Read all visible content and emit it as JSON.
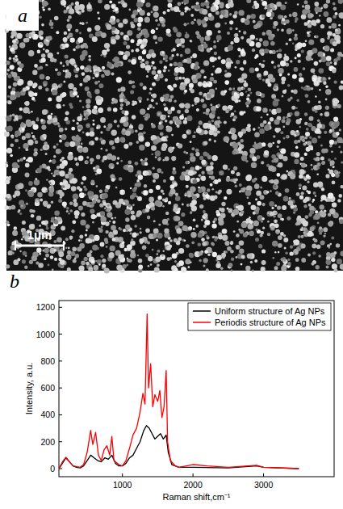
{
  "image_panel": {
    "letter": "a",
    "scale_bar_label": "1μm"
  },
  "chart_letter": "b",
  "chart_data": {
    "type": "line",
    "x_label": "Raman shift,cm⁻¹",
    "y_label": "Intensity, a.u.",
    "xlim": [
      100,
      4000
    ],
    "xticks": [
      1000,
      2000,
      3000
    ],
    "ylim": [
      -60,
      1250
    ],
    "yticks": [
      0,
      200,
      400,
      600,
      800,
      1000,
      1200
    ],
    "legend": "upper right",
    "grid": false,
    "series": [
      {
        "name": "Uniform structure of Ag NPs",
        "color": "#000000",
        "x": [
          100,
          150,
          200,
          250,
          300,
          350,
          400,
          450,
          500,
          550,
          600,
          650,
          700,
          750,
          800,
          850,
          900,
          950,
          1000,
          1050,
          1100,
          1150,
          1200,
          1250,
          1300,
          1340,
          1380,
          1420,
          1460,
          1500,
          1540,
          1580,
          1620,
          1650,
          1700,
          1800,
          2000,
          2500,
          2900,
          3000,
          3500
        ],
        "values": [
          0,
          40,
          80,
          50,
          20,
          10,
          5,
          20,
          60,
          100,
          80,
          60,
          50,
          80,
          70,
          100,
          40,
          20,
          20,
          40,
          80,
          100,
          150,
          200,
          280,
          320,
          300,
          260,
          220,
          240,
          260,
          220,
          250,
          120,
          30,
          10,
          10,
          5,
          20,
          10,
          0
        ]
      },
      {
        "name": "Periodis structure of Ag NPs",
        "color": "#ff0000",
        "x": [
          100,
          150,
          200,
          250,
          300,
          400,
          450,
          500,
          550,
          580,
          620,
          660,
          700,
          740,
          780,
          820,
          850,
          880,
          950,
          1000,
          1050,
          1100,
          1150,
          1200,
          1250,
          1290,
          1320,
          1350,
          1370,
          1400,
          1430,
          1460,
          1500,
          1530,
          1560,
          1590,
          1620,
          1640,
          1680,
          1750,
          1800,
          2000,
          2200,
          2500,
          2900,
          3000,
          3500
        ],
        "values": [
          0,
          50,
          85,
          50,
          20,
          10,
          30,
          120,
          285,
          180,
          270,
          100,
          60,
          140,
          170,
          100,
          240,
          60,
          30,
          20,
          60,
          150,
          250,
          300,
          420,
          560,
          480,
          1150,
          600,
          780,
          460,
          550,
          500,
          580,
          380,
          460,
          730,
          200,
          60,
          20,
          10,
          30,
          20,
          10,
          25,
          10,
          0
        ]
      }
    ]
  }
}
